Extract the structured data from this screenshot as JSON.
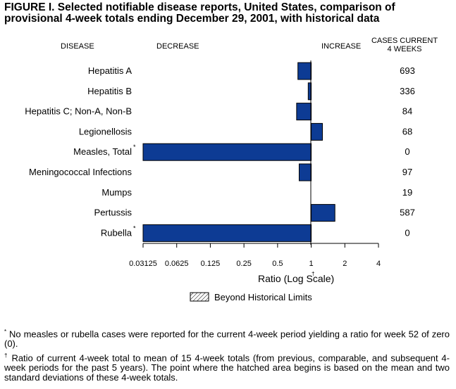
{
  "title_line1": "FIGURE I. Selected notifiable disease reports, United States, comparison of",
  "title_line2": "provisional 4-week totals ending December 29, 2001, with historical data",
  "chart_data": {
    "type": "bar",
    "orientation": "horizontal",
    "column_headers": {
      "disease": "DISEASE",
      "decrease": "DECREASE",
      "increase": "INCREASE",
      "cases_line1": "CASES CURRENT",
      "cases_line2": "4 WEEKS"
    },
    "categories": [
      "Hepatitis A",
      "Hepatitis B",
      "Hepatitis C; Non-A, Non-B",
      "Legionellosis",
      "Measles, Total",
      "Meningococcal Infections",
      "Mumps",
      "Pertussis",
      "Rubella"
    ],
    "category_marks": [
      "",
      "",
      "",
      "",
      "*",
      "",
      "",
      "",
      "*"
    ],
    "values": [
      0.76,
      0.94,
      0.74,
      1.26,
      0,
      0.78,
      1.0,
      1.63,
      0
    ],
    "cases_current_4_weeks": [
      "693",
      "336",
      "84",
      "68",
      "0",
      "97",
      "19",
      "587",
      "0"
    ],
    "xlabel": "Ratio (Log Scale)",
    "xlabel_mark": "†",
    "x_scale": "log2",
    "xlim": [
      0.03125,
      4
    ],
    "x_ticks": [
      "0.03125",
      "0.0625",
      "0.125",
      "0.25",
      "0.5",
      "1",
      "2",
      "4"
    ],
    "baseline": 1,
    "bar_color": "#0d3b94",
    "legend": {
      "label": "Beyond Historical Limits",
      "pattern": "hatched",
      "placement": "bottom-center"
    }
  },
  "footnotes": [
    {
      "mark": "*",
      "text": "No measles or rubella cases were reported for the current 4-week period yielding a ratio for week 52 of zero (0)."
    },
    {
      "mark": "†",
      "text": "Ratio of current 4-week total to mean of 15 4-week totals (from previous, comparable, and subsequent 4-week periods for the past 5 years). The point where the hatched area begins is based on the mean and two standard deviations of these 4-week totals."
    }
  ]
}
